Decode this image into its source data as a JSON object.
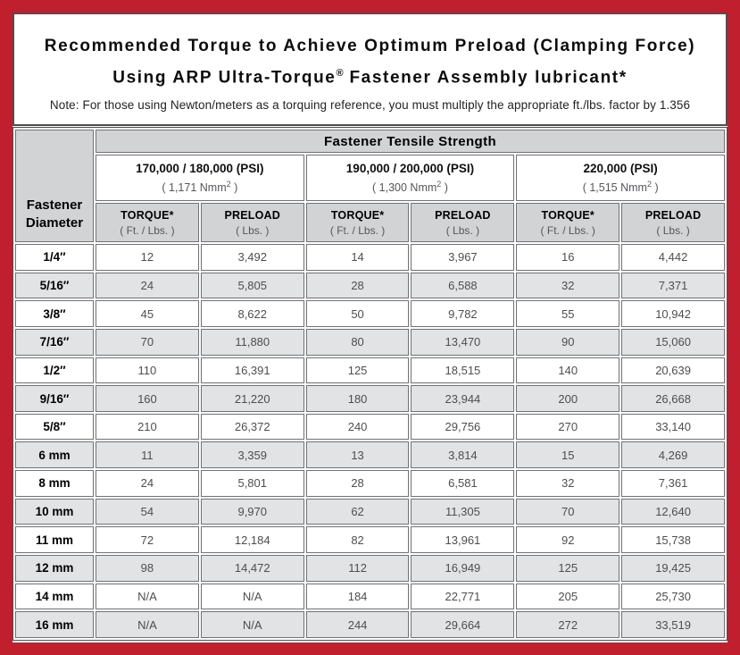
{
  "frame": {
    "border_color": "#c0202e"
  },
  "title": {
    "line1": "Recommended Torque to Achieve Optimum Preload (Clamping Force)",
    "line2_pre": "Using ARP Ultra-Torque",
    "line2_sup": "®",
    "line2_post": " Fastener Assembly lubricant*",
    "note": "Note: For those using Newton/meters as a torquing reference, you must multiply the appropriate ft./lbs. factor by 1.356"
  },
  "table": {
    "tensile_header": "Fastener Tensile Strength",
    "diameter_header_line1": "Fastener",
    "diameter_header_line2": "Diameter",
    "strength_groups": [
      {
        "psi": "170,000 / 180,000 (PSI)",
        "nmm_pre": "( 1,171 Nmm",
        "nmm_sup": "2",
        "nmm_post": " )"
      },
      {
        "psi": "190,000 / 200,000 (PSI)",
        "nmm_pre": "( 1,300 Nmm",
        "nmm_sup": "2",
        "nmm_post": " )"
      },
      {
        "psi": "220,000 (PSI)",
        "nmm_pre": "( 1,515 Nmm",
        "nmm_sup": "2",
        "nmm_post": " )"
      }
    ],
    "col_headers": {
      "torque_label": "TORQUE*",
      "torque_unit": "( Ft. / Lbs. )",
      "preload_label": "PRELOAD",
      "preload_unit": "( Lbs. )"
    },
    "rows": [
      {
        "diameter": "1/4″",
        "values": [
          "12",
          "3,492",
          "14",
          "3,967",
          "16",
          "4,442"
        ]
      },
      {
        "diameter": "5/16″",
        "values": [
          "24",
          "5,805",
          "28",
          "6,588",
          "32",
          "7,371"
        ]
      },
      {
        "diameter": "3/8″",
        "values": [
          "45",
          "8,622",
          "50",
          "9,782",
          "55",
          "10,942"
        ]
      },
      {
        "diameter": "7/16″",
        "values": [
          "70",
          "11,880",
          "80",
          "13,470",
          "90",
          "15,060"
        ]
      },
      {
        "diameter": "1/2″",
        "values": [
          "110",
          "16,391",
          "125",
          "18,515",
          "140",
          "20,639"
        ]
      },
      {
        "diameter": "9/16″",
        "values": [
          "160",
          "21,220",
          "180",
          "23,944",
          "200",
          "26,668"
        ]
      },
      {
        "diameter": "5/8″",
        "values": [
          "210",
          "26,372",
          "240",
          "29,756",
          "270",
          "33,140"
        ]
      },
      {
        "diameter": "6 mm",
        "values": [
          "11",
          "3,359",
          "13",
          "3,814",
          "15",
          "4,269"
        ]
      },
      {
        "diameter": "8 mm",
        "values": [
          "24",
          "5,801",
          "28",
          "6,581",
          "32",
          "7,361"
        ]
      },
      {
        "diameter": "10 mm",
        "values": [
          "54",
          "9,970",
          "62",
          "11,305",
          "70",
          "12,640"
        ]
      },
      {
        "diameter": "11 mm",
        "values": [
          "72",
          "12,184",
          "82",
          "13,961",
          "92",
          "15,738"
        ]
      },
      {
        "diameter": "12 mm",
        "values": [
          "98",
          "14,472",
          "112",
          "16,949",
          "125",
          "19,425"
        ]
      },
      {
        "diameter": "14 mm",
        "values": [
          "N/A",
          "N/A",
          "184",
          "22,771",
          "205",
          "25,730"
        ]
      },
      {
        "diameter": "16 mm",
        "values": [
          "N/A",
          "N/A",
          "244",
          "29,664",
          "272",
          "33,519"
        ]
      }
    ]
  }
}
